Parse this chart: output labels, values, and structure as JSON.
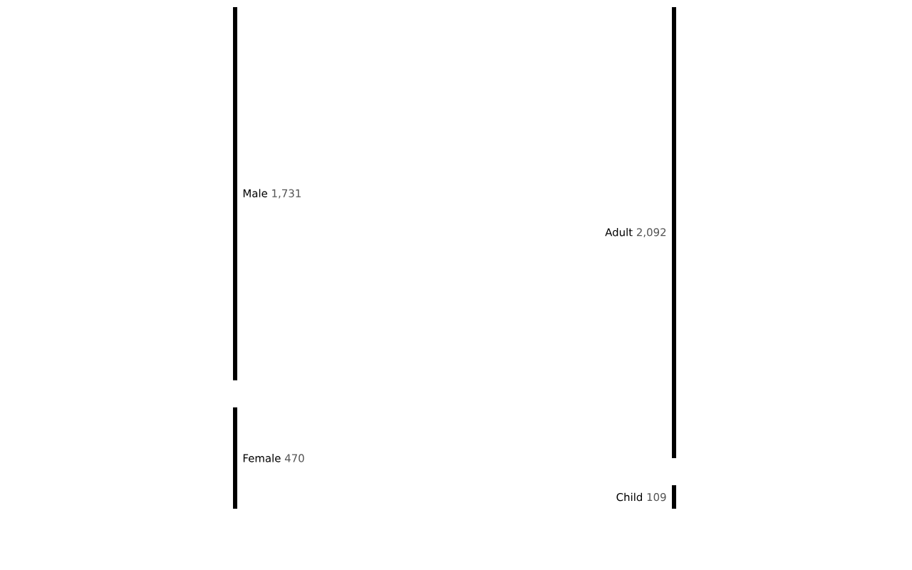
{
  "chart_data": [
    {
      "type": "other",
      "categories": [
        "Male",
        "Female"
      ],
      "values": [
        1731,
        470
      ],
      "value_labels": [
        "1,731",
        "470"
      ]
    },
    {
      "type": "other",
      "categories": [
        "Adult",
        "Child"
      ],
      "values": [
        2092,
        109
      ],
      "value_labels": [
        "2,092",
        "109"
      ]
    }
  ]
}
